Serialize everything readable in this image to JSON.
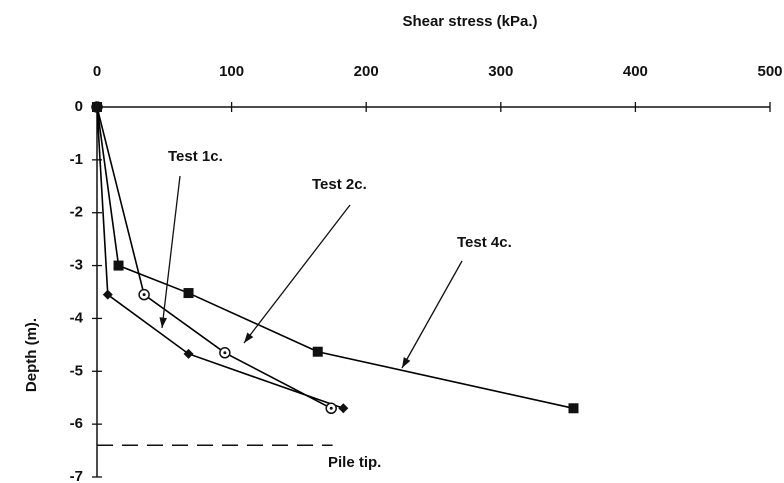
{
  "chart_data": {
    "type": "line",
    "x_label": "Shear stress (kPa.)",
    "y_label": "Depth (m).",
    "xlim": [
      0,
      500
    ],
    "xticks": [
      0,
      100,
      200,
      300,
      400,
      500
    ],
    "ylim": [
      -7,
      0
    ],
    "yticks": [
      0,
      -1,
      -2,
      -3,
      -4,
      -5,
      -6,
      -7
    ],
    "series": [
      {
        "name": "Test 1c.",
        "color": "#000000",
        "marker": "diamond",
        "x": [
          0,
          8,
          68,
          183
        ],
        "values": [
          0,
          -3.55,
          -4.67,
          -5.7
        ]
      },
      {
        "name": "Test 2c.",
        "color": "#000000",
        "marker": "circle",
        "x": [
          0,
          35,
          95,
          174
        ],
        "values": [
          0,
          -3.55,
          -4.65,
          -5.7
        ]
      },
      {
        "name": "Test 4c.",
        "color": "#000000",
        "marker": "square",
        "x": [
          0,
          16,
          68,
          164,
          354
        ],
        "values": [
          0,
          -3,
          -3.52,
          -4.63,
          -5.7
        ]
      }
    ],
    "pile_tip": {
      "label": "Pile tip.",
      "depth": -6.4,
      "x_end": 175
    }
  }
}
